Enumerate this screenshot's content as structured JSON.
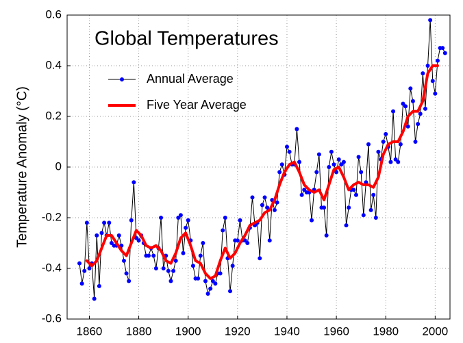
{
  "chart_data": {
    "type": "line",
    "title": "Global Temperatures",
    "ylabel": "Temperature Anomaly (°C)",
    "xlim": [
      1851,
      2006
    ],
    "ylim": [
      -0.6,
      0.6
    ],
    "xticks": [
      1860,
      1880,
      1900,
      1920,
      1940,
      1960,
      1980,
      2000
    ],
    "yticks": [
      -0.6,
      -0.4,
      -0.2,
      0,
      0.2,
      0.4,
      0.6
    ],
    "grid": true,
    "legend": "upper left",
    "series": [
      {
        "name": "Annual Average",
        "color": "#0000ff",
        "line_color": "#000000",
        "marker": true,
        "x": [
          1856,
          1857,
          1858,
          1859,
          1860,
          1861,
          1862,
          1863,
          1864,
          1865,
          1866,
          1867,
          1868,
          1869,
          1870,
          1871,
          1872,
          1873,
          1874,
          1875,
          1876,
          1877,
          1878,
          1879,
          1880,
          1881,
          1882,
          1883,
          1884,
          1885,
          1886,
          1887,
          1888,
          1889,
          1890,
          1891,
          1892,
          1893,
          1894,
          1895,
          1896,
          1897,
          1898,
          1899,
          1900,
          1901,
          1902,
          1903,
          1904,
          1905,
          1906,
          1907,
          1908,
          1909,
          1910,
          1911,
          1912,
          1913,
          1914,
          1915,
          1916,
          1917,
          1918,
          1919,
          1920,
          1921,
          1922,
          1923,
          1924,
          1925,
          1926,
          1927,
          1928,
          1929,
          1930,
          1931,
          1932,
          1933,
          1934,
          1935,
          1936,
          1937,
          1938,
          1939,
          1940,
          1941,
          1942,
          1943,
          1944,
          1945,
          1946,
          1947,
          1948,
          1949,
          1950,
          1951,
          1952,
          1953,
          1954,
          1955,
          1956,
          1957,
          1958,
          1959,
          1960,
          1961,
          1962,
          1963,
          1964,
          1965,
          1966,
          1967,
          1968,
          1969,
          1970,
          1971,
          1972,
          1973,
          1974,
          1975,
          1976,
          1977,
          1978,
          1979,
          1980,
          1981,
          1982,
          1983,
          1984,
          1985,
          1986,
          1987,
          1988,
          1989,
          1990,
          1991,
          1992,
          1993,
          1994,
          1995,
          1996,
          1997,
          1998,
          1999,
          2000,
          2001,
          2002,
          2003,
          2004
        ],
        "values": [
          -0.38,
          -0.46,
          -0.41,
          -0.22,
          -0.4,
          -0.38,
          -0.52,
          -0.27,
          -0.47,
          -0.26,
          -0.22,
          -0.27,
          -0.22,
          -0.3,
          -0.31,
          -0.31,
          -0.27,
          -0.31,
          -0.37,
          -0.42,
          -0.45,
          -0.21,
          -0.06,
          -0.28,
          -0.29,
          -0.27,
          -0.3,
          -0.35,
          -0.35,
          -0.32,
          -0.35,
          -0.4,
          -0.32,
          -0.2,
          -0.4,
          -0.35,
          -0.41,
          -0.45,
          -0.41,
          -0.37,
          -0.2,
          -0.19,
          -0.34,
          -0.24,
          -0.21,
          -0.29,
          -0.39,
          -0.44,
          -0.44,
          -0.35,
          -0.3,
          -0.45,
          -0.5,
          -0.48,
          -0.45,
          -0.46,
          -0.42,
          -0.42,
          -0.25,
          -0.2,
          -0.36,
          -0.49,
          -0.39,
          -0.29,
          -0.29,
          -0.21,
          -0.29,
          -0.29,
          -0.3,
          -0.24,
          -0.12,
          -0.23,
          -0.22,
          -0.36,
          -0.15,
          -0.12,
          -0.16,
          -0.29,
          -0.13,
          -0.17,
          -0.14,
          -0.02,
          0.01,
          -0.03,
          0.08,
          0.06,
          0.01,
          0.01,
          0.15,
          0.02,
          -0.11,
          -0.09,
          -0.1,
          -0.1,
          -0.21,
          -0.09,
          -0.02,
          0.05,
          -0.16,
          -0.16,
          -0.27,
          0.0,
          0.06,
          0.01,
          -0.02,
          0.03,
          0.01,
          0.02,
          -0.23,
          -0.16,
          -0.09,
          -0.09,
          -0.11,
          0.04,
          -0.02,
          -0.19,
          -0.06,
          0.09,
          -0.17,
          -0.11,
          -0.2,
          0.06,
          0.03,
          0.1,
          0.13,
          0.08,
          0.02,
          0.22,
          0.03,
          0.02,
          0.09,
          0.25,
          0.24,
          0.16,
          0.31,
          0.26,
          0.1,
          0.17,
          0.21,
          0.37,
          0.23,
          0.4,
          0.58,
          0.34,
          0.29,
          0.42,
          0.47,
          0.47,
          0.45
        ]
      },
      {
        "name": "Five Year Average",
        "color": "#ff0000",
        "marker": false,
        "x": [
          1859,
          1861,
          1863,
          1865,
          1867,
          1869,
          1871,
          1873,
          1875,
          1877,
          1879,
          1881,
          1883,
          1885,
          1887,
          1889,
          1891,
          1893,
          1895,
          1897,
          1899,
          1901,
          1903,
          1905,
          1907,
          1909,
          1911,
          1913,
          1915,
          1917,
          1919,
          1921,
          1923,
          1925,
          1927,
          1929,
          1931,
          1933,
          1935,
          1937,
          1939,
          1941,
          1943,
          1945,
          1947,
          1949,
          1951,
          1953,
          1955,
          1957,
          1959,
          1961,
          1963,
          1965,
          1967,
          1969,
          1971,
          1973,
          1975,
          1977,
          1979,
          1981,
          1983,
          1985,
          1987,
          1989,
          1991,
          1993,
          1995,
          1997,
          1999,
          2001
        ],
        "values": [
          -0.37,
          -0.39,
          -0.37,
          -0.32,
          -0.27,
          -0.27,
          -0.3,
          -0.33,
          -0.35,
          -0.3,
          -0.25,
          -0.27,
          -0.31,
          -0.32,
          -0.31,
          -0.33,
          -0.37,
          -0.38,
          -0.34,
          -0.28,
          -0.26,
          -0.31,
          -0.37,
          -0.38,
          -0.42,
          -0.44,
          -0.43,
          -0.37,
          -0.32,
          -0.36,
          -0.34,
          -0.3,
          -0.27,
          -0.23,
          -0.22,
          -0.21,
          -0.18,
          -0.17,
          -0.13,
          -0.07,
          -0.02,
          0.01,
          0.02,
          -0.02,
          -0.07,
          -0.09,
          -0.1,
          -0.09,
          -0.13,
          -0.07,
          -0.01,
          0.0,
          -0.04,
          -0.09,
          -0.07,
          -0.06,
          -0.07,
          -0.07,
          -0.08,
          -0.04,
          0.05,
          0.09,
          0.1,
          0.1,
          0.14,
          0.2,
          0.22,
          0.22,
          0.26,
          0.37,
          0.4,
          0.4
        ]
      }
    ]
  }
}
